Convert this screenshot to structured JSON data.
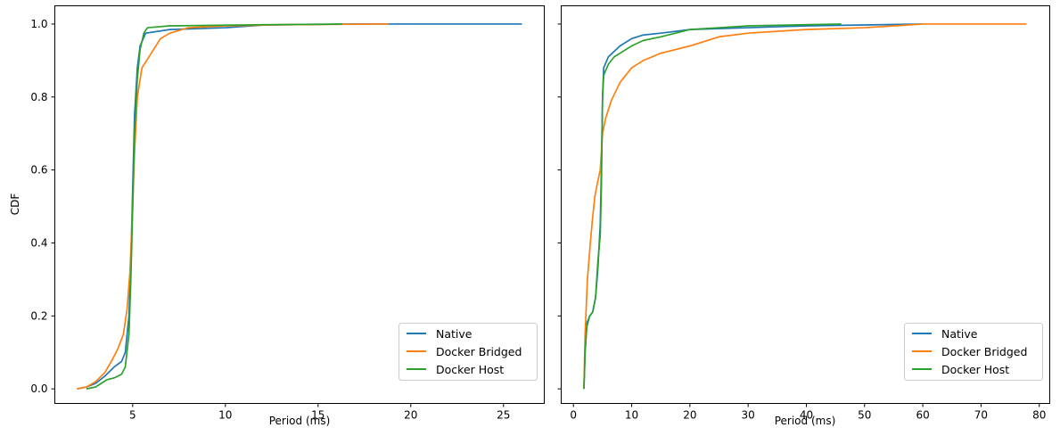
{
  "colors": {
    "native": "#1f77b4",
    "bridged": "#ff7f0e",
    "host": "#2ca02c"
  },
  "chart_data": [
    {
      "type": "line",
      "title": "",
      "xlabel": "Period (ms)",
      "ylabel": "CDF",
      "xlim": [
        0.8,
        27.2
      ],
      "ylim": [
        -0.04,
        1.05
      ],
      "xticks": [
        5,
        10,
        15,
        20,
        25
      ],
      "yticks": [
        0.0,
        0.2,
        0.4,
        0.6,
        0.8,
        1.0
      ],
      "grid": false,
      "legend": "lower-right",
      "series": [
        {
          "name": "Native",
          "color": "#1f77b4",
          "points": [
            [
              2.0,
              0.0
            ],
            [
              2.5,
              0.005
            ],
            [
              3.0,
              0.015
            ],
            [
              3.5,
              0.035
            ],
            [
              4.0,
              0.06
            ],
            [
              4.4,
              0.075
            ],
            [
              4.6,
              0.1
            ],
            [
              4.8,
              0.2
            ],
            [
              4.9,
              0.35
            ],
            [
              5.0,
              0.55
            ],
            [
              5.1,
              0.75
            ],
            [
              5.25,
              0.88
            ],
            [
              5.4,
              0.94
            ],
            [
              5.7,
              0.975
            ],
            [
              7.0,
              0.985
            ],
            [
              10.0,
              0.99
            ],
            [
              12.0,
              0.997
            ],
            [
              16.5,
              1.0
            ],
            [
              26.0,
              1.0
            ]
          ]
        },
        {
          "name": "Docker Bridged",
          "color": "#ff7f0e",
          "points": [
            [
              2.0,
              0.0
            ],
            [
              2.5,
              0.005
            ],
            [
              3.0,
              0.02
            ],
            [
              3.5,
              0.045
            ],
            [
              3.9,
              0.08
            ],
            [
              4.2,
              0.11
            ],
            [
              4.5,
              0.15
            ],
            [
              4.7,
              0.22
            ],
            [
              4.85,
              0.32
            ],
            [
              5.0,
              0.5
            ],
            [
              5.1,
              0.65
            ],
            [
              5.25,
              0.8
            ],
            [
              5.5,
              0.88
            ],
            [
              6.0,
              0.92
            ],
            [
              6.5,
              0.96
            ],
            [
              7.0,
              0.975
            ],
            [
              8.0,
              0.99
            ],
            [
              10.0,
              0.995
            ],
            [
              13.0,
              0.998
            ],
            [
              18.8,
              1.0
            ]
          ]
        },
        {
          "name": "Docker Host",
          "color": "#2ca02c",
          "points": [
            [
              2.5,
              0.0
            ],
            [
              3.0,
              0.005
            ],
            [
              3.3,
              0.015
            ],
            [
              3.6,
              0.025
            ],
            [
              4.0,
              0.03
            ],
            [
              4.4,
              0.04
            ],
            [
              4.6,
              0.06
            ],
            [
              4.8,
              0.15
            ],
            [
              4.9,
              0.3
            ],
            [
              5.0,
              0.5
            ],
            [
              5.1,
              0.7
            ],
            [
              5.25,
              0.85
            ],
            [
              5.4,
              0.93
            ],
            [
              5.6,
              0.975
            ],
            [
              5.8,
              0.99
            ],
            [
              7.0,
              0.995
            ],
            [
              12.0,
              0.998
            ],
            [
              16.3,
              1.0
            ]
          ]
        }
      ]
    },
    {
      "type": "line",
      "title": "",
      "xlabel": "Period (ms)",
      "ylabel": "",
      "xlim": [
        -2.1,
        81.8
      ],
      "ylim": [
        -0.04,
        1.05
      ],
      "xticks": [
        0,
        10,
        20,
        30,
        40,
        50,
        60,
        70,
        80
      ],
      "yticks": [
        0.0,
        0.2,
        0.4,
        0.6,
        0.8,
        1.0
      ],
      "grid": false,
      "legend": "lower-right",
      "series": [
        {
          "name": "Native",
          "color": "#1f77b4",
          "points": [
            [
              1.8,
              0.0
            ],
            [
              2.0,
              0.1
            ],
            [
              2.3,
              0.18
            ],
            [
              2.8,
              0.2
            ],
            [
              3.3,
              0.21
            ],
            [
              3.8,
              0.25
            ],
            [
              4.2,
              0.33
            ],
            [
              4.6,
              0.45
            ],
            [
              4.8,
              0.6
            ],
            [
              5.0,
              0.8
            ],
            [
              5.2,
              0.88
            ],
            [
              6.0,
              0.91
            ],
            [
              7.0,
              0.925
            ],
            [
              8.0,
              0.94
            ],
            [
              10.0,
              0.96
            ],
            [
              12.0,
              0.97
            ],
            [
              15.0,
              0.975
            ],
            [
              20.0,
              0.985
            ],
            [
              30.0,
              0.99
            ],
            [
              40.0,
              0.995
            ],
            [
              59.8,
              1.0
            ]
          ]
        },
        {
          "name": "Docker Bridged",
          "color": "#ff7f0e",
          "points": [
            [
              1.8,
              0.0
            ],
            [
              2.0,
              0.15
            ],
            [
              2.4,
              0.3
            ],
            [
              2.9,
              0.4
            ],
            [
              3.3,
              0.47
            ],
            [
              3.7,
              0.53
            ],
            [
              4.2,
              0.57
            ],
            [
              4.6,
              0.6
            ],
            [
              5.0,
              0.7
            ],
            [
              5.5,
              0.74
            ],
            [
              6.5,
              0.79
            ],
            [
              8.0,
              0.84
            ],
            [
              10.0,
              0.88
            ],
            [
              12.0,
              0.9
            ],
            [
              15.0,
              0.92
            ],
            [
              20.0,
              0.94
            ],
            [
              25.0,
              0.965
            ],
            [
              30.0,
              0.975
            ],
            [
              40.0,
              0.985
            ],
            [
              50.0,
              0.99
            ],
            [
              60.0,
              1.0
            ],
            [
              77.8,
              1.0
            ]
          ]
        },
        {
          "name": "Docker Host",
          "color": "#2ca02c",
          "points": [
            [
              1.8,
              0.0
            ],
            [
              2.0,
              0.1
            ],
            [
              2.3,
              0.17
            ],
            [
              2.8,
              0.2
            ],
            [
              3.3,
              0.21
            ],
            [
              3.8,
              0.25
            ],
            [
              4.2,
              0.35
            ],
            [
              4.6,
              0.42
            ],
            [
              4.8,
              0.55
            ],
            [
              5.0,
              0.8
            ],
            [
              5.2,
              0.86
            ],
            [
              6.0,
              0.89
            ],
            [
              7.0,
              0.91
            ],
            [
              8.0,
              0.92
            ],
            [
              10.0,
              0.94
            ],
            [
              12.0,
              0.955
            ],
            [
              15.0,
              0.965
            ],
            [
              20.0,
              0.985
            ],
            [
              25.0,
              0.99
            ],
            [
              30.0,
              0.995
            ],
            [
              46.0,
              1.0
            ]
          ]
        }
      ]
    }
  ]
}
